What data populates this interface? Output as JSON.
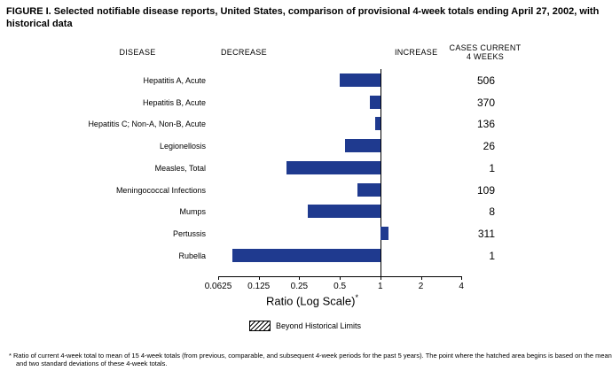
{
  "title": "FIGURE I. Selected notifiable disease reports, United States, comparison of provisional 4-week totals ending April 27, 2002, with historical data",
  "headers": {
    "disease": "DISEASE",
    "decrease": "DECREASE",
    "increase": "INCREASE",
    "cases_line1": "CASES CURRENT",
    "cases_line2": "4 WEEKS"
  },
  "chart_data": {
    "type": "bar",
    "orientation": "horizontal",
    "scale": "log2",
    "title": "FIGURE I. Selected notifiable disease reports, United States, comparison of provisional 4-week totals ending April 27, 2002, with historical data",
    "axis_label": "Ratio (Log Scale)",
    "axis_label_superscript": "*",
    "xlim": [
      0.0625,
      4
    ],
    "baseline": 1,
    "ticks": [
      0.0625,
      0.125,
      0.25,
      0.5,
      1,
      2,
      4
    ],
    "tick_labels": [
      "0.0625",
      "0.125",
      "0.25",
      "0.5",
      "1",
      "2",
      "4"
    ],
    "bar_color": "#1f3a8f",
    "rows": [
      {
        "disease": "Hepatitis A, Acute",
        "ratio": 0.5,
        "cases": "506",
        "beyond_limits": false
      },
      {
        "disease": "Hepatitis B, Acute",
        "ratio": 0.83,
        "cases": "370",
        "beyond_limits": false
      },
      {
        "disease": "Hepatitis C; Non-A, Non-B, Acute",
        "ratio": 0.92,
        "cases": "136",
        "beyond_limits": false
      },
      {
        "disease": "Legionellosis",
        "ratio": 0.55,
        "cases": "26",
        "beyond_limits": false
      },
      {
        "disease": "Measles, Total",
        "ratio": 0.2,
        "cases": "1",
        "beyond_limits": false
      },
      {
        "disease": "Meningococcal Infections",
        "ratio": 0.68,
        "cases": "109",
        "beyond_limits": false
      },
      {
        "disease": "Mumps",
        "ratio": 0.29,
        "cases": "8",
        "beyond_limits": false
      },
      {
        "disease": "Pertussis",
        "ratio": 1.15,
        "cases": "311",
        "beyond_limits": false
      },
      {
        "disease": "Rubella",
        "ratio": 0.08,
        "cases": "1",
        "beyond_limits": false
      }
    ]
  },
  "legend": {
    "label": "Beyond Historical Limits"
  },
  "footnote": "* Ratio of current 4-week total to mean of 15 4-week totals (from previous, comparable, and subsequent 4-week periods for the past 5 years). The point where the hatched area begins is based on the mean and two standard deviations of these 4-week totals."
}
